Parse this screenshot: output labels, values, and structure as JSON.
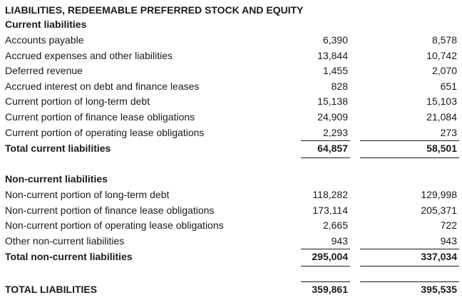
{
  "heading": "LIABILITIES, REDEEMABLE PREFERRED STOCK AND EQUITY",
  "current": {
    "title": "Current liabilities",
    "rows": [
      {
        "label": "Accounts payable",
        "v1": "6,390",
        "v2": "8,578"
      },
      {
        "label": "Accrued expenses and other liabilities",
        "v1": "13,844",
        "v2": "10,742"
      },
      {
        "label": "Deferred revenue",
        "v1": "1,455",
        "v2": "2,070"
      },
      {
        "label": "Accrued interest on debt and finance leases",
        "v1": "828",
        "v2": "651"
      },
      {
        "label": "Current portion of long-term debt",
        "v1": "15,138",
        "v2": "15,103"
      },
      {
        "label": "Current portion of finance lease obligations",
        "v1": "24,909",
        "v2": "21,084"
      },
      {
        "label": "Current portion of operating lease obligations",
        "v1": "2,293",
        "v2": "273"
      }
    ],
    "total": {
      "label": "Total current liabilities",
      "v1": "64,857",
      "v2": "58,501"
    }
  },
  "noncurrent": {
    "title": "Non-current liabilities",
    "rows": [
      {
        "label": "Non-current portion of long-term debt",
        "v1": "118,282",
        "v2": "129,998"
      },
      {
        "label": "Non-current portion of finance lease obligations",
        "v1": "173,114",
        "v2": "205,371"
      },
      {
        "label": "Non-current portion of operating lease obligations",
        "v1": "2,665",
        "v2": "722"
      },
      {
        "label": "Other non-current liabilities",
        "v1": "943",
        "v2": "943"
      }
    ],
    "total": {
      "label": "Total non-current liabilities",
      "v1": "295,004",
      "v2": "337,034"
    }
  },
  "grand_total": {
    "label": "TOTAL LIABILITIES",
    "v1": "359,861",
    "v2": "395,535"
  }
}
